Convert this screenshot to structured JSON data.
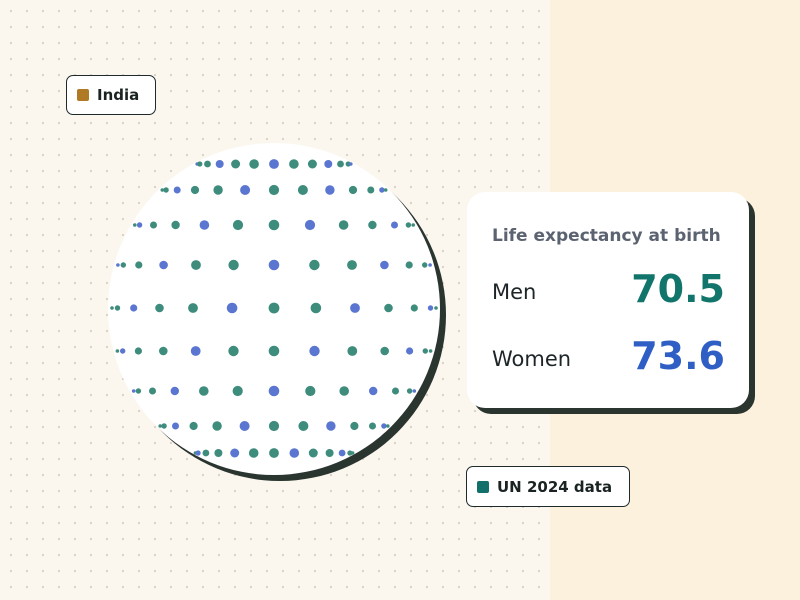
{
  "country_tag": {
    "label": "India",
    "swatch_color": "#b07a25"
  },
  "source_tag": {
    "label": "UN 2024 data",
    "swatch_color": "#12706a"
  },
  "card": {
    "title": "Life expectancy at birth",
    "rows": [
      {
        "label": "Men",
        "value": "70.5",
        "color": "#12756b"
      },
      {
        "label": "Women",
        "value": "73.6",
        "color": "#2f5fc4"
      }
    ]
  },
  "globe": {
    "dot_colors": [
      "#3e8c7c",
      "#5b76d0"
    ]
  }
}
